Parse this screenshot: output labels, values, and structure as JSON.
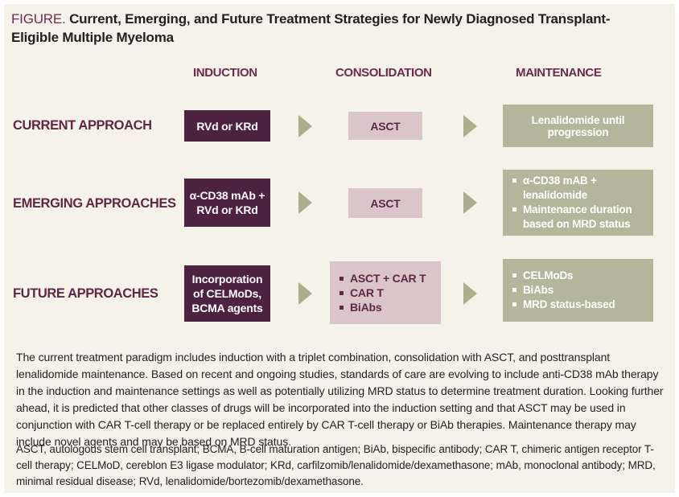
{
  "figure": {
    "label": "FIGURE.",
    "title": "Current, Emerging, and Future Treatment Strategies for Newly Diagnosed Transplant-Eligible Multiple Myeloma"
  },
  "columns": {
    "induction": "INDUCTION",
    "consolidation": "CONSOLIDATION",
    "maintenance": "MAINTENANCE"
  },
  "rows": [
    {
      "label": "CURRENT APPROACH",
      "induction": {
        "lines": [
          "RVd or KRd"
        ]
      },
      "consolidation": {
        "text": "ASCT"
      },
      "maintenance": {
        "text": "Lenalidomide until progression"
      }
    },
    {
      "label": "EMERGING APPROACHES",
      "induction": {
        "lines": [
          "α-CD38 mAb +",
          "RVd or KRd"
        ]
      },
      "consolidation": {
        "text": "ASCT"
      },
      "maintenance": {
        "bullets": [
          "α-CD38 mAB + lenalidomide",
          "Maintenance duration based on MRD status"
        ]
      }
    },
    {
      "label": "FUTURE APPROACHES",
      "induction": {
        "lines": [
          "Incorporation",
          "of CELMoDs,",
          "BCMA agents"
        ]
      },
      "consolidation": {
        "bullets": [
          "ASCT + CAR T",
          "CAR T",
          "BiAbs"
        ]
      },
      "maintenance": {
        "bullets": [
          "CELMoDs",
          "BiAbs",
          "MRD status-based"
        ]
      }
    }
  ],
  "caption": {
    "text": "The current treatment paradigm includes induction with a triplet combination, consolidation with ASCT, and posttransplant lenalidomide maintenance. Based on recent and ongoing studies, standards of care are evolving to include anti-CD38 mAb therapy in the induction and maintenance settings as well as potentially utilizing MRD status to determine treatment duration. Looking further ahead, it is predicted that other classes of drugs will be incorporated into the induction setting and that ASCT may be used in conjunction with CAR T-cell therapy or be replaced entirely by CAR T-cell therapy or BiAb therapies. Maintenance therapy may include novel agents and may be based on MRD status."
  },
  "footnote": {
    "text": "ASCT, autologous stem cell transplant; BCMA, B-cell maturation antigen; BiAb, bispecific antibody; CAR T, chimeric antigen receptor T-cell therapy; CELMoD, cereblon E3 ligase modulator; KRd, carfilzomib/lenalidomide/dexamethasone; mAb, monoclonal antibody; MRD, minimal residual disease; RVd, lenalidomide/bortezomib/dexamethasone."
  },
  "colors": {
    "background": "#F5F2E9",
    "accent_maroon": "#6D2A4E",
    "dark_plum_box": "#4D2140",
    "mauve_box": "#D9C5CA",
    "sage_box": "#B4B69C",
    "arrow": "#ABAE8D"
  }
}
